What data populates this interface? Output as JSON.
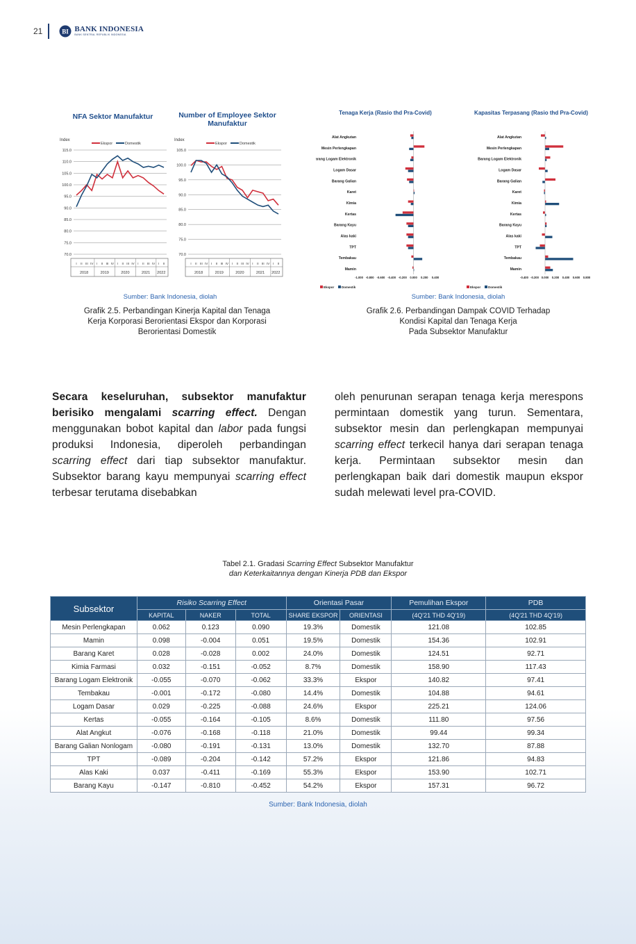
{
  "header": {
    "page_number": "21",
    "logo_name": "BANK INDONESIA",
    "logo_sub": "BANK SENTRAL REPUBLIK INDONESIA"
  },
  "chart_data": [
    {
      "type": "line",
      "title": "NFA Sektor Manufaktur",
      "ylabel": "Index",
      "ylim": [
        70,
        115
      ],
      "yticks": [
        "115.0",
        "110.0",
        "105.0",
        "100.0",
        "95.0",
        "90.0",
        "85.0",
        "80.0",
        "75.0",
        "70.0"
      ],
      "quarter_labels": [
        "I",
        "II",
        "III",
        "IV",
        "I",
        "II",
        "III",
        "IV",
        "I",
        "II",
        "III",
        "IV",
        "I",
        "II",
        "III",
        "IV",
        "I",
        "II"
      ],
      "years": [
        "2018",
        "2019",
        "2020",
        "2021",
        "2022"
      ],
      "series": [
        {
          "name": "Ekspor",
          "color": "#d0303c",
          "values": [
            95.5,
            97.5,
            100,
            97.5,
            104.5,
            102.5,
            104.5,
            103,
            110,
            103,
            106,
            103,
            104,
            103,
            101,
            99.5,
            97.5,
            96
          ]
        },
        {
          "name": "Domestik",
          "color": "#1f4e7a",
          "values": [
            90.5,
            95.5,
            99.5,
            104.5,
            103,
            106,
            109,
            111,
            112.5,
            110.5,
            111.5,
            110,
            109,
            107.5,
            108,
            107.5,
            108.5,
            107.5
          ]
        }
      ]
    },
    {
      "type": "line",
      "title": "Number of Employee Sektor Manufaktur",
      "ylabel": "Index",
      "ylim": [
        70,
        105
      ],
      "yticks": [
        "105.0",
        "100.0",
        "95.0",
        "90.0",
        "85.0",
        "80.0",
        "75.0",
        "70.0"
      ],
      "quarter_labels": [
        "I",
        "II",
        "III",
        "IV",
        "I",
        "II",
        "III",
        "IV",
        "I",
        "II",
        "III",
        "IV",
        "I",
        "II",
        "III",
        "IV",
        "I",
        "II"
      ],
      "years": [
        "2018",
        "2019",
        "2020",
        "2021",
        "2022"
      ],
      "series": [
        {
          "name": "Ekspor",
          "color": "#d0303c",
          "values": [
            99.8,
            101.5,
            101,
            101,
            99.5,
            98.5,
            99.5,
            95.5,
            95,
            92.5,
            91.5,
            89,
            91.5,
            91,
            90.5,
            88,
            88.5,
            86.5
          ]
        },
        {
          "name": "Domestik",
          "color": "#1f4e7a",
          "values": [
            97.5,
            101.5,
            101.5,
            100.5,
            97.5,
            100,
            97,
            96,
            94,
            91.5,
            89.5,
            88.5,
            87.5,
            86.5,
            86,
            86.5,
            84.5,
            83.5
          ]
        }
      ]
    },
    {
      "type": "bar",
      "orientation": "horizontal",
      "title": "Tenaga Kerja (Rasio thd Pra-Covid)",
      "categories": [
        "Alat Angkutan",
        "Mesin Perlengkapan",
        "Barang Logam Elektronik",
        "Logam Dasar",
        "Barang Galian",
        "Karet",
        "Kimia",
        "Kertas",
        "Barang Kayu",
        "Alas kaki",
        "TPT",
        "Tembakau",
        "Mamin"
      ],
      "xticks": [
        "-1.000",
        "-0.800",
        "-0.600",
        "-0.400",
        "-0.200",
        "0.000",
        "0.200",
        "0.400"
      ],
      "xlim": [
        -1.0,
        0.4
      ],
      "series": [
        {
          "name": "Ekspor",
          "color": "#d0303c",
          "values": [
            -0.06,
            0.2,
            -0.04,
            -0.15,
            -0.12,
            0.0,
            -0.1,
            -0.2,
            -0.13,
            -0.13,
            -0.13,
            -0.04,
            -0.02
          ]
        },
        {
          "name": "Domestik",
          "color": "#1f4e7a",
          "values": [
            -0.04,
            -0.08,
            -0.06,
            -0.1,
            -0.08,
            0.02,
            -0.05,
            -0.33,
            -0.1,
            -0.1,
            -0.1,
            0.16,
            0.01
          ]
        }
      ]
    },
    {
      "type": "bar",
      "orientation": "horizontal",
      "title": "Kapasitas Terpasang (Rasio thd Pra-Covid)",
      "categories": [
        "Alat Angkutan",
        "Mesin Perlengkapan",
        "Barang Logam Elektronik",
        "Logam Dasar",
        "Barang Galian",
        "Karet",
        "Kimia",
        "Kertas",
        "Barang Kayu",
        "Alas kaki",
        "TPT",
        "Tembakau",
        "Mamin"
      ],
      "xticks": [
        "-0.400",
        "-0.200",
        "0.000",
        "0.200",
        "0.400",
        "0.600",
        "0.800"
      ],
      "xlim": [
        -0.4,
        0.8
      ],
      "series": [
        {
          "name": "Ekspor",
          "color": "#d0303c",
          "values": [
            -0.08,
            0.35,
            0.1,
            -0.12,
            0.2,
            -0.02,
            0.02,
            -0.04,
            0.03,
            -0.06,
            -0.1,
            0.06,
            0.1
          ]
        },
        {
          "name": "Domestik",
          "color": "#1f4e7a",
          "values": [
            0.02,
            0.08,
            0.03,
            0.05,
            -0.05,
            -0.02,
            0.27,
            0.02,
            0.03,
            0.14,
            -0.18,
            0.54,
            0.15
          ]
        }
      ]
    }
  ],
  "charts": {
    "legend": {
      "ekspor": "Ekspor",
      "domestik": "Domestik"
    },
    "left_source": "Sumber: Bank Indonesia, diolah",
    "left_caption": [
      "Grafik 2.5. Perbandingan Kinerja Kapital dan Tenaga",
      "Kerja Korporasi Berorientasi Ekspor dan Korporasi",
      "Berorientasi Domestik"
    ],
    "right_source": "Sumber: Bank Indonesia, diolah",
    "right_caption": [
      "Grafik 2.6. Perbandingan Dampak COVID Terhadap",
      "Kondisi Kapital dan Tenaga Kerja",
      "Pada Subsektor Manufaktur"
    ]
  },
  "body": {
    "p1_bold": "Secara keseluruhan, subsektor manufaktur berisiko mengalami ",
    "p1_bold_italic": "scarring effect.",
    "p1_a": " Dengan menggunakan bobot kapital dan ",
    "p1_italic_a": "labor",
    "p1_b": " pada fungsi produksi Indonesia, diperoleh perbandingan ",
    "p1_italic_b": "scarring effect",
    "p1_c": " dari tiap subsektor manufaktur. Subsektor barang kayu mempunyai ",
    "p1_italic_c": "scarring effect",
    "p1_d": " terbesar terutama disebabkan",
    "p2_a": "oleh penurunan serapan tenaga kerja merespons permintaan domestik yang turun. Sementara, subsektor mesin dan perlengkapan mempunyai ",
    "p2_italic": "scarring effect",
    "p2_b": " terkecil hanya dari serapan tenaga kerja. Permintaan subsektor mesin dan perlengkapan baik dari domestik maupun ekspor sudah melewati level pra-COVID."
  },
  "table": {
    "caption_1a": "Tabel 2.1. Gradasi ",
    "caption_1_italic": "Scarring Effect",
    "caption_1b": " Subsektor Manufaktur",
    "caption_2": "dan Keterkaitannya dengan Kinerja PDB dan Ekspor",
    "h_subsektor": "Subsektor",
    "h_risiko": "Risiko Scarring Effect",
    "h_orientasi_pasar": "Orientasi Pasar",
    "h_pemulihan": "Pemulihan Ekspor",
    "h_pdb": "PDB",
    "h_kapital": "KAPITAL",
    "h_naker": "NAKER",
    "h_total": "TOTAL",
    "h_share": "SHARE EKSPOR",
    "h_orientasi": "ORIENTASI",
    "h_pem_sub": "(4Q'21 THD 4Q'19)",
    "h_pdb_sub": "(4Q'21 THD 4Q'19)",
    "rows": [
      [
        "Mesin Perlengkapan",
        "0.062",
        "0.123",
        "0.090",
        "19.3%",
        "Domestik",
        "121.08",
        "102.85"
      ],
      [
        "Mamin",
        "0.098",
        "-0.004",
        "0.051",
        "19.5%",
        "Domestik",
        "154.36",
        "102.91"
      ],
      [
        "Barang Karet",
        "0.028",
        "-0.028",
        "0.002",
        "24.0%",
        "Domestik",
        "124.51",
        "92.71"
      ],
      [
        "Kimia Farmasi",
        "0.032",
        "-0.151",
        "-0.052",
        "8.7%",
        "Domestik",
        "158.90",
        "117.43"
      ],
      [
        "Barang Logam Elektronik",
        "-0.055",
        "-0.070",
        "-0.062",
        "33.3%",
        "Ekspor",
        "140.82",
        "97.41"
      ],
      [
        "Tembakau",
        "-0.001",
        "-0.172",
        "-0.080",
        "14.4%",
        "Domestik",
        "104.88",
        "94.61"
      ],
      [
        "Logam Dasar",
        "0.029",
        "-0.225",
        "-0.088",
        "24.6%",
        "Ekspor",
        "225.21",
        "124.06"
      ],
      [
        "Kertas",
        "-0.055",
        "-0.164",
        "-0.105",
        "8.6%",
        "Domestik",
        "111.80",
        "97.56"
      ],
      [
        "Alat Angkut",
        "-0.076",
        "-0.168",
        "-0.118",
        "21.0%",
        "Domestik",
        "99.44",
        "99.34"
      ],
      [
        "Barang Galian Nonlogam",
        "-0.080",
        "-0.191",
        "-0.131",
        "13.0%",
        "Domestik",
        "132.70",
        "87.88"
      ],
      [
        "TPT",
        "-0.089",
        "-0.204",
        "-0.142",
        "57.2%",
        "Ekspor",
        "121.86",
        "94.83"
      ],
      [
        "Alas Kaki",
        "0.037",
        "-0.411",
        "-0.169",
        "55.3%",
        "Ekspor",
        "153.90",
        "102.71"
      ],
      [
        "Barang Kayu",
        "-0.147",
        "-0.810",
        "-0.452",
        "54.2%",
        "Ekspor",
        "157.31",
        "96.72"
      ]
    ],
    "source": "Sumber: Bank Indonesia, diolah"
  }
}
